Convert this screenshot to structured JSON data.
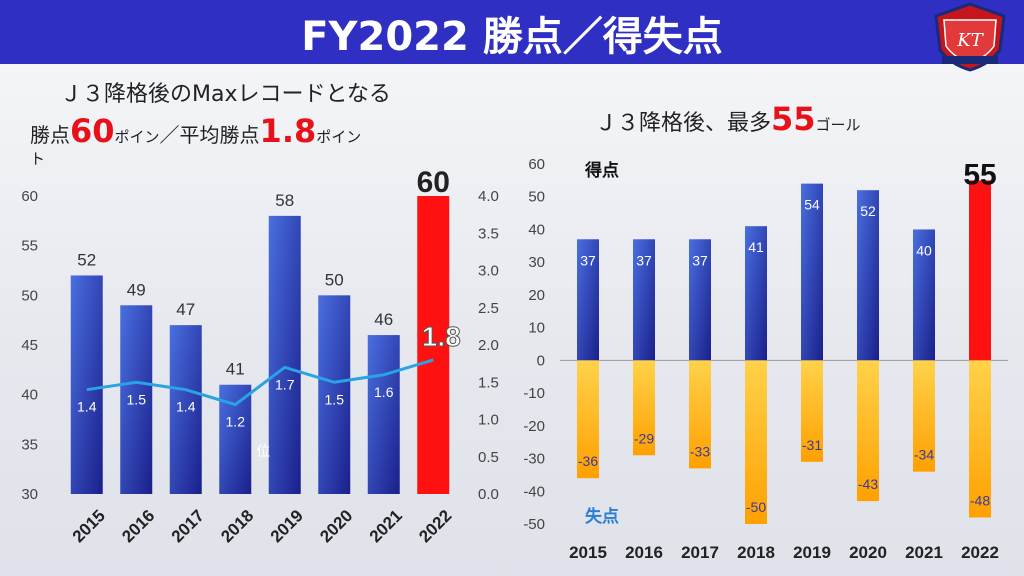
{
  "header": {
    "title": "FY2022 勝点／得失点"
  },
  "left_panel": {
    "headline": "Ｊ３降格後のMaxレコードとなる",
    "line2_prefix": "勝点",
    "line2_value": "60",
    "line2_unit": "ポイン",
    "line2_mid": "／平均勝点",
    "line2_avg": "1.8",
    "line2_avg_unit": "ポイン",
    "line2_wrap": "ト"
  },
  "right_panel": {
    "headline_prefix": "Ｊ３降格後、最多",
    "headline_value": "55",
    "headline_unit": "ゴール"
  },
  "colors": {
    "header_bg": "#2f2fc4",
    "bar_blue": "#2a2fb8",
    "bar_red": "#ff1111",
    "bar_orange": "#ffb300",
    "line": "#29a3e6",
    "highlight_text": "#e8111a"
  },
  "chart_data": [
    {
      "type": "bar",
      "categories": [
        "2015",
        "2016",
        "2017",
        "2018",
        "2019",
        "2020",
        "2021",
        "2022"
      ],
      "series": [
        {
          "values": [
            52,
            49,
            47,
            41,
            58,
            50,
            46,
            60
          ],
          "axis": "left"
        },
        {
          "type": "line",
          "values": [
            1.4,
            1.5,
            1.4,
            1.2,
            1.7,
            1.5,
            1.6,
            1.8
          ],
          "axis": "right"
        }
      ],
      "ylim": [
        30,
        60
      ],
      "yticks": [
        "30",
        "35",
        "40",
        "45",
        "50",
        "55",
        "60"
      ],
      "y2lim": [
        0.0,
        4.0
      ],
      "y2ticks": [
        "0.0",
        "0.5",
        "1.0",
        "1.5",
        "2.0",
        "2.5",
        "3.0",
        "3.5",
        "4.0"
      ],
      "highlight_index": 7,
      "annotation": "位"
    },
    {
      "type": "bar",
      "categories": [
        "2015",
        "2016",
        "2017",
        "2018",
        "2019",
        "2020",
        "2021",
        "2022"
      ],
      "series": [
        {
          "name": "得点",
          "values": [
            37,
            37,
            37,
            41,
            54,
            52,
            40,
            55
          ]
        },
        {
          "name": "失点",
          "values": [
            -36,
            -29,
            -33,
            -50,
            -31,
            -43,
            -34,
            -48
          ]
        }
      ],
      "ylim": [
        -50,
        60
      ],
      "yticks": [
        "60",
        "50",
        "40",
        "30",
        "20",
        "10",
        "0",
        "-10",
        "-20",
        "-30",
        "-40",
        "-50"
      ],
      "highlight_index": 7
    }
  ]
}
